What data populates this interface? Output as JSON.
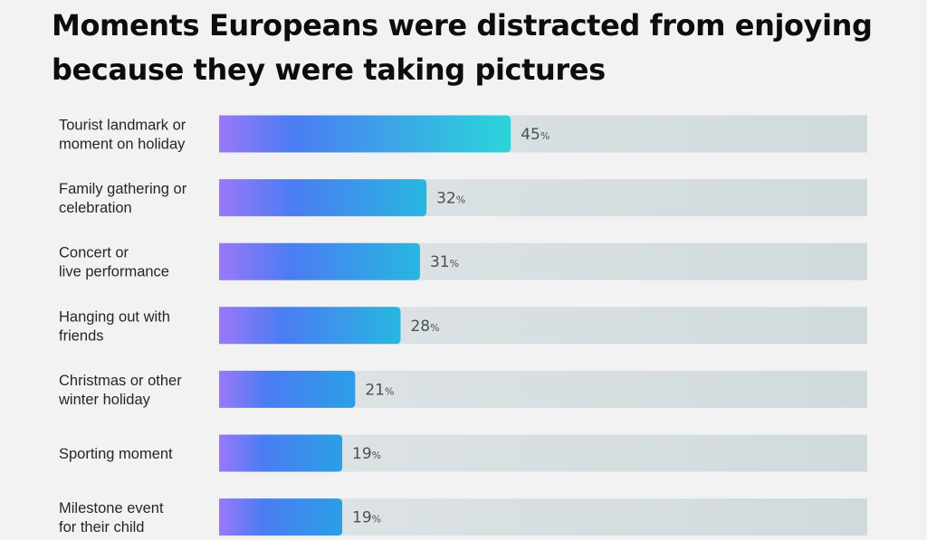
{
  "chart_data": {
    "type": "bar",
    "orientation": "horizontal",
    "title": "Moments Europeans were distracted from enjoying because they were taking pictures",
    "title_lines": [
      "Moments Europeans were distracted from enjoying",
      "because they were taking pictures"
    ],
    "categories": [
      [
        "Tourist landmark or",
        "moment on holiday"
      ],
      [
        "Family gathering or",
        "celebration"
      ],
      [
        "Concert or",
        "live performance"
      ],
      [
        "Hanging out with",
        "friends"
      ],
      [
        "Christmas or other",
        "winter holiday"
      ],
      [
        "Sporting moment"
      ],
      [
        "Milestone event",
        "for their child"
      ]
    ],
    "values": [
      45,
      32,
      31,
      28,
      21,
      19,
      19
    ],
    "value_suffix": "%",
    "xlim": [
      0,
      100
    ],
    "xlabel": "",
    "ylabel": "",
    "grid": false,
    "legend": false,
    "colors": {
      "gradient_start": "#9b78f8",
      "gradient_mid": "#4b7cf3",
      "gradient_end": "#2ad5d9",
      "track": "#dfe4e7",
      "track_end": "#d0dadc"
    }
  }
}
